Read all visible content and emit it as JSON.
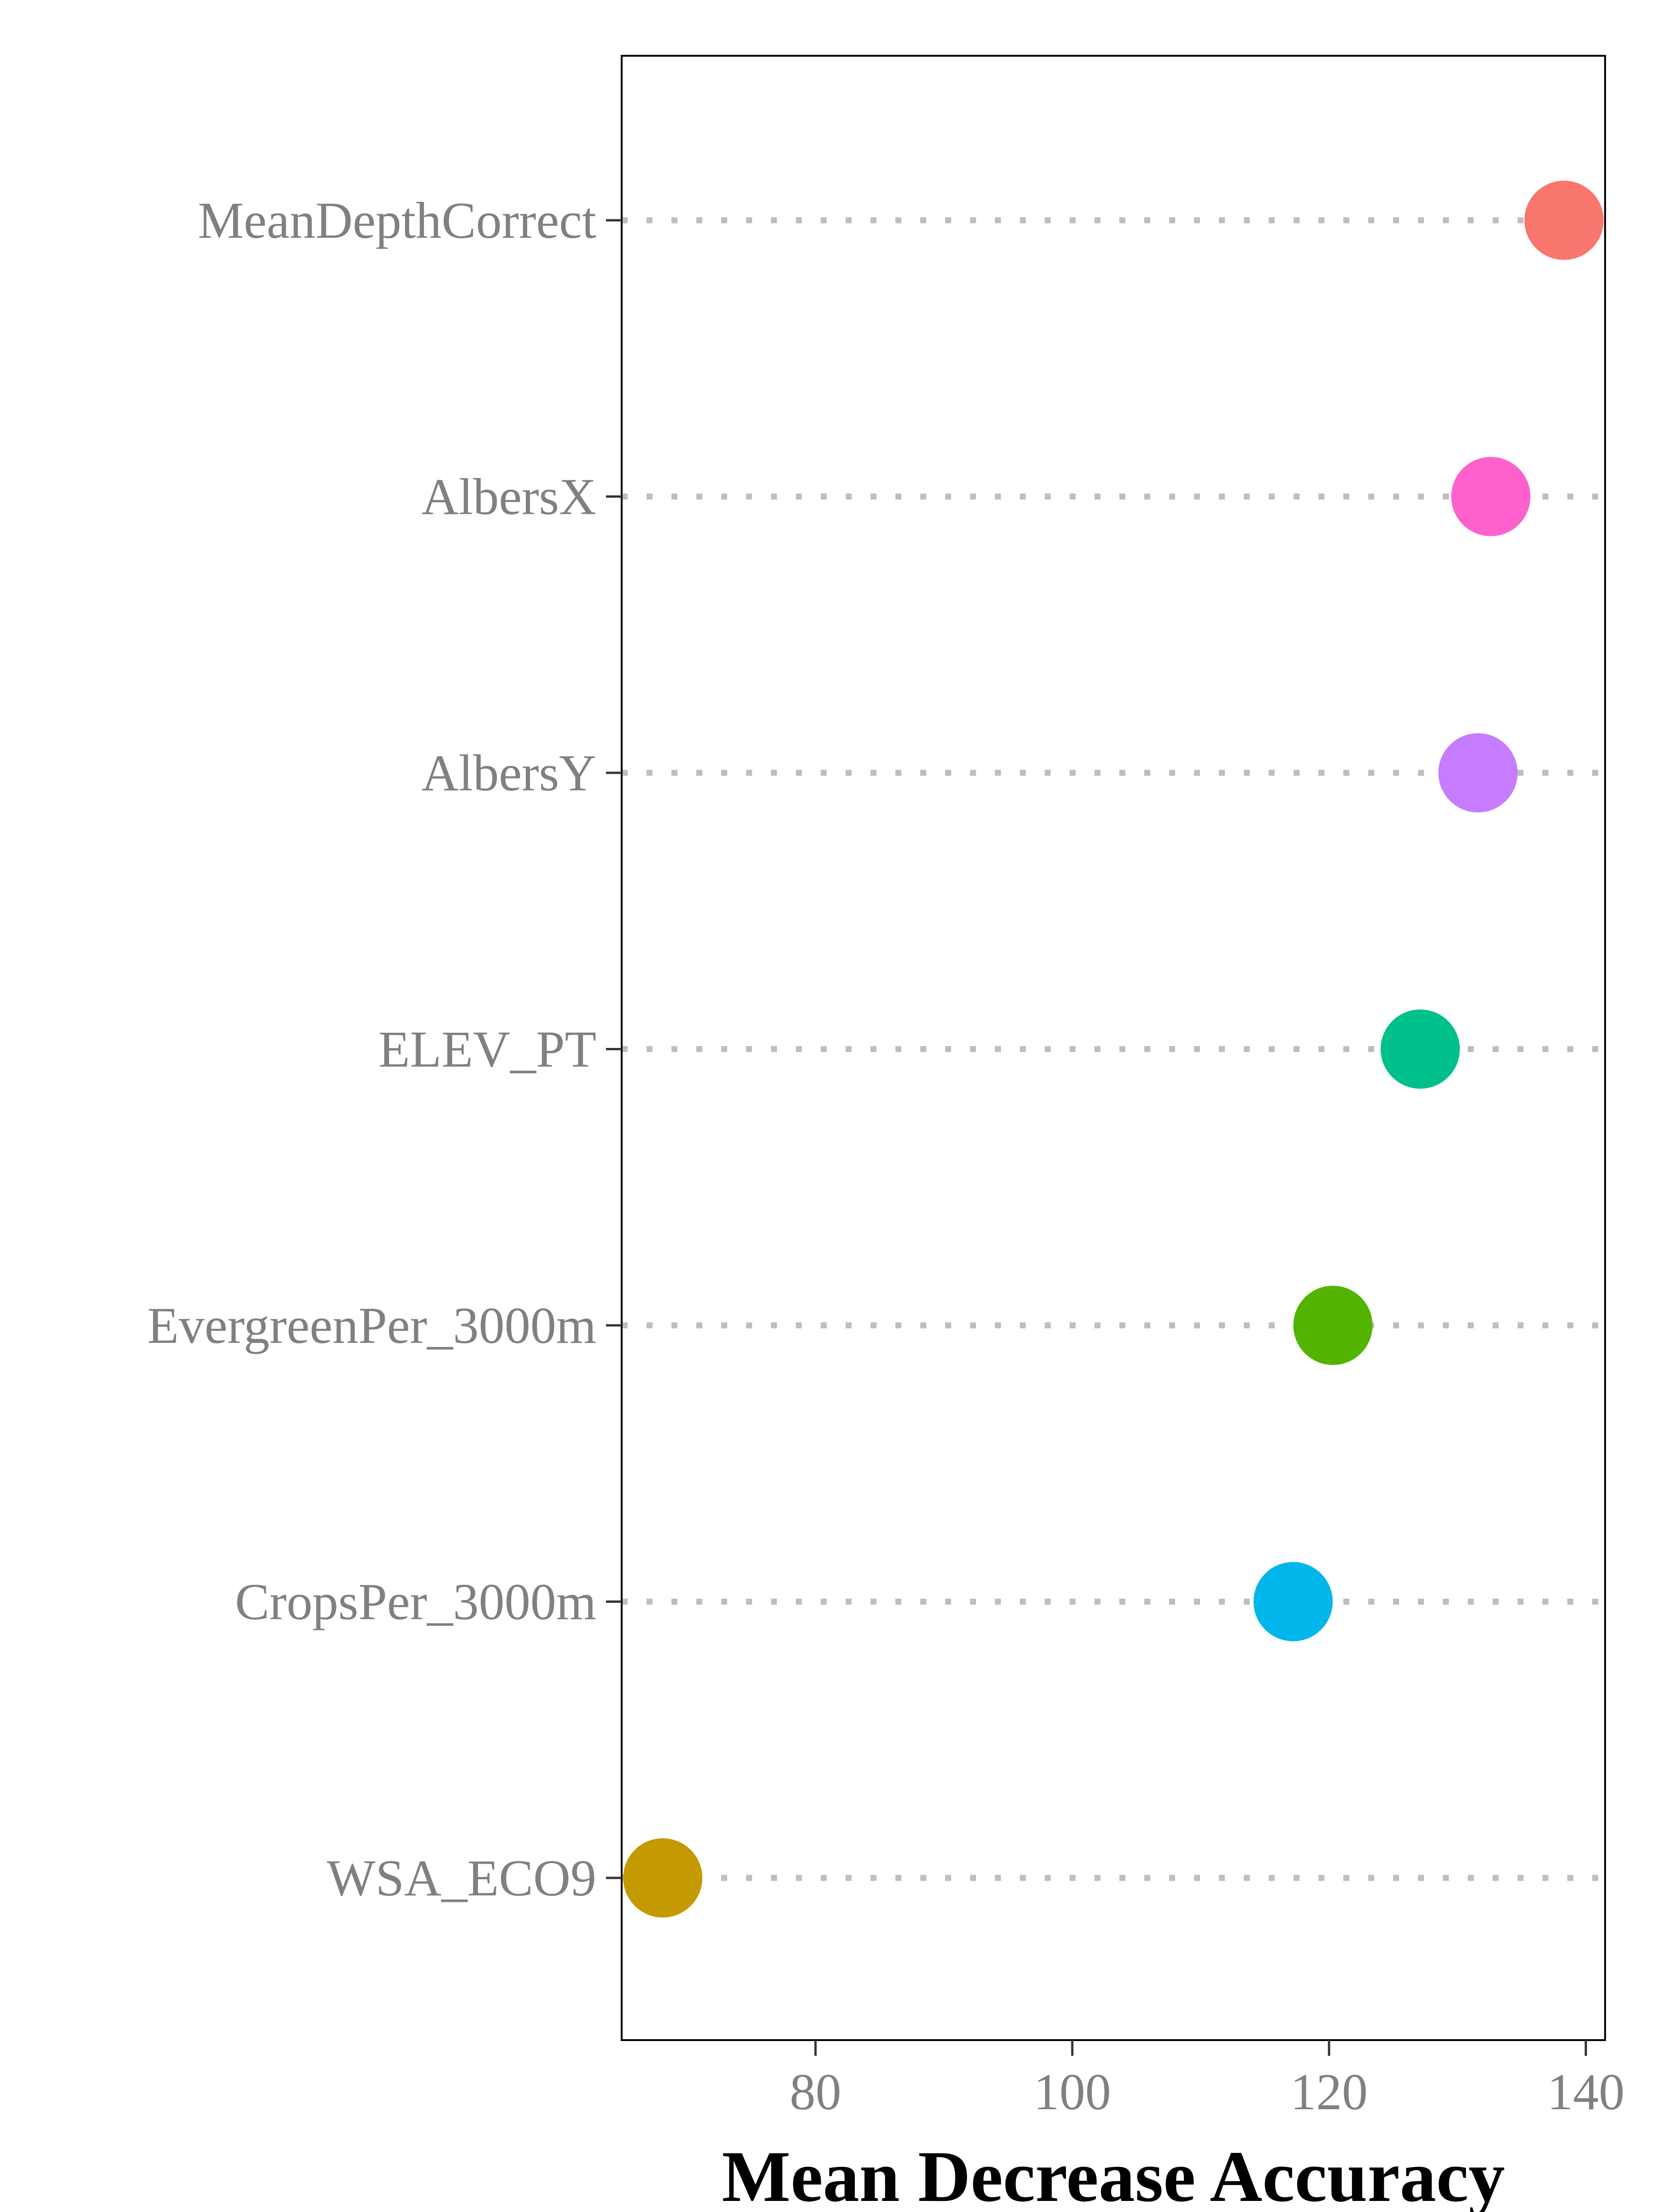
{
  "chart_data": {
    "type": "scatter",
    "title": "",
    "xlabel": "Mean Decrease Accuracy",
    "ylabel": "",
    "xlim": [
      64.9,
      141.5
    ],
    "x_ticks": [
      "80",
      "100",
      "120",
      "140"
    ],
    "grid": "dotted horizontal guide per category",
    "legend": "none",
    "categories": [
      "MeanDepthCorrect",
      "AlbersX",
      "AlbersY",
      "ELEV_PT",
      "EvergreenPer_3000m",
      "CropsPer_3000m",
      "WSA_ECO9"
    ],
    "values": [
      138.3,
      132.6,
      131.6,
      127.1,
      120.3,
      117.2,
      68.1
    ],
    "colors": [
      "#F8766D",
      "#FF61CC",
      "#C77CFF",
      "#00C08B",
      "#53B400",
      "#00B6EB",
      "#C49A00"
    ],
    "guide_color": "#BEBEBE"
  }
}
